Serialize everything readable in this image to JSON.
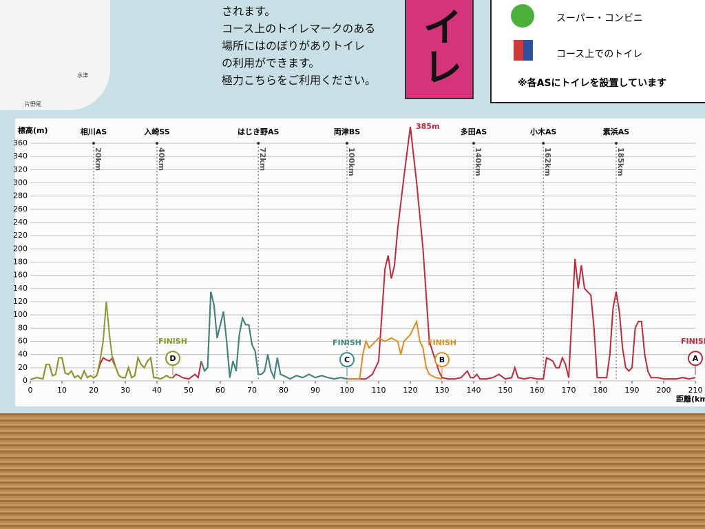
{
  "page": {
    "intro_lines": [
      "されます。",
      "コース上のトイレマークのある",
      "場所にはのぼりがありトイレ",
      "の利用ができます。",
      "極力こちらをご利用ください。"
    ],
    "banner": "イレ",
    "legend": {
      "shop": "スーパー・コンビニ",
      "toilet": "コース上でのトイレ",
      "note": "※各ASにトイレを設置しています"
    },
    "map_labels": [
      "水津",
      "片野尾"
    ]
  },
  "chart_data": {
    "type": "line",
    "y_label": "標高(m)",
    "x_label": "距離(km)",
    "xlim": [
      0,
      210
    ],
    "ylim": [
      0,
      360
    ],
    "xticks": [
      0,
      10,
      20,
      30,
      40,
      50,
      60,
      70,
      80,
      90,
      100,
      110,
      120,
      130,
      140,
      150,
      160,
      170,
      180,
      190,
      200,
      210
    ],
    "yticks": [
      0,
      20,
      40,
      60,
      80,
      100,
      120,
      140,
      160,
      180,
      200,
      220,
      240,
      260,
      280,
      300,
      320,
      340,
      360
    ],
    "grid": true,
    "stations": [
      {
        "label": "相川AS",
        "distance": {
          "value": 20,
          "label": "20km"
        }
      },
      {
        "label": "入崎SS",
        "distance": {
          "value": 40,
          "label": "40km"
        }
      },
      {
        "label": "はじき野AS",
        "distance": {
          "value": 72,
          "label": "72km"
        }
      },
      {
        "label": "両津BS",
        "distance": {
          "value": 100,
          "label": "100km"
        }
      },
      {
        "label": "多田AS",
        "distance": {
          "value": 140,
          "label": "140km"
        }
      },
      {
        "label": "小木AS",
        "distance": {
          "value": 162,
          "label": "162km"
        }
      },
      {
        "label": "素浜AS",
        "distance": {
          "value": 185,
          "label": "185km"
        }
      }
    ],
    "peak_label": {
      "value": 385,
      "label": "385m"
    },
    "finish_label": "FINISH",
    "series": [
      {
        "name": "A",
        "color": "#c0283c",
        "x": [
          0,
          2,
          4,
          5,
          6,
          7,
          8,
          9,
          10,
          11,
          12,
          13,
          14,
          15,
          16,
          17,
          18,
          19,
          20,
          21,
          22,
          23,
          24,
          25,
          26,
          27,
          28,
          29,
          30,
          31,
          32,
          33,
          34,
          35,
          36,
          37,
          38,
          39,
          40,
          41,
          42,
          43,
          44,
          45,
          46,
          47,
          48,
          50,
          52,
          53,
          54,
          55,
          56,
          57,
          58,
          59,
          60,
          61,
          62,
          63,
          64,
          65,
          66,
          67,
          68,
          69,
          70,
          71,
          72,
          73,
          74,
          75,
          76,
          77,
          78,
          79,
          80,
          82,
          84,
          86,
          88,
          90,
          92,
          94,
          96,
          98,
          100,
          102,
          104,
          106,
          108,
          110,
          111,
          112,
          113,
          114,
          115,
          116,
          118,
          120,
          122,
          124,
          126,
          128,
          129,
          130,
          132,
          134,
          136,
          138,
          139,
          140,
          141,
          142,
          144,
          146,
          148,
          150,
          152,
          153,
          154,
          156,
          158,
          160,
          162,
          163,
          165,
          166,
          167,
          168,
          169,
          170,
          172,
          173,
          174,
          175,
          177,
          178,
          179,
          180,
          182,
          183,
          184,
          185,
          186,
          187,
          188,
          189,
          190,
          191,
          192,
          193,
          194,
          195,
          196,
          198,
          200,
          204,
          206,
          208,
          210
        ],
        "values": [
          2,
          5,
          3,
          25,
          25,
          8,
          10,
          35,
          35,
          12,
          10,
          15,
          5,
          8,
          3,
          15,
          5,
          8,
          5,
          8,
          25,
          35,
          32,
          30,
          35,
          20,
          8,
          5,
          5,
          20,
          5,
          8,
          35,
          25,
          20,
          30,
          35,
          5,
          5,
          3,
          5,
          8,
          5,
          5,
          10,
          8,
          5,
          3,
          10,
          5,
          30,
          15,
          20,
          135,
          115,
          65,
          85,
          105,
          60,
          5,
          30,
          15,
          70,
          95,
          85,
          85,
          55,
          45,
          10,
          10,
          15,
          40,
          15,
          5,
          35,
          10,
          8,
          3,
          8,
          5,
          10,
          5,
          8,
          5,
          3,
          5,
          3,
          3,
          3,
          3,
          10,
          30,
          100,
          170,
          190,
          155,
          175,
          230,
          310,
          385,
          300,
          200,
          60,
          30,
          15,
          5,
          3,
          3,
          5,
          15,
          5,
          5,
          10,
          3,
          3,
          5,
          10,
          3,
          5,
          20,
          5,
          3,
          5,
          3,
          3,
          35,
          30,
          20,
          20,
          35,
          25,
          5,
          185,
          140,
          175,
          140,
          130,
          80,
          5,
          5,
          5,
          40,
          110,
          135,
          105,
          50,
          20,
          15,
          20,
          80,
          90,
          90,
          40,
          15,
          5,
          5,
          3,
          3,
          5,
          3,
          5
        ]
      },
      {
        "name": "B",
        "color": "#e08a1e",
        "x": [
          100,
          104,
          105,
          106,
          107,
          108,
          110,
          112,
          114,
          116,
          117,
          118,
          120,
          122,
          123,
          124,
          125,
          126,
          128,
          130
        ],
        "values": [
          3,
          3,
          40,
          60,
          50,
          55,
          65,
          60,
          65,
          60,
          40,
          60,
          70,
          90,
          60,
          50,
          20,
          10,
          5,
          3
        ]
      },
      {
        "name": "C",
        "color": "#3a8a80",
        "x": [
          54,
          55,
          56,
          57,
          58,
          59,
          60,
          61,
          62,
          63,
          64,
          65,
          66,
          67,
          68,
          69,
          70,
          71,
          72,
          73,
          74,
          75,
          76,
          77,
          78,
          79,
          80,
          82,
          84,
          86,
          88,
          90,
          92,
          94,
          96,
          98,
          100
        ],
        "values": [
          30,
          15,
          20,
          135,
          115,
          65,
          85,
          105,
          60,
          5,
          30,
          15,
          70,
          95,
          85,
          85,
          55,
          45,
          10,
          10,
          15,
          40,
          15,
          5,
          35,
          10,
          8,
          3,
          8,
          5,
          10,
          5,
          8,
          5,
          3,
          5,
          3
        ]
      },
      {
        "name": "D",
        "color": "#8a9a2a",
        "x": [
          0,
          2,
          4,
          5,
          6,
          7,
          8,
          9,
          10,
          11,
          12,
          13,
          14,
          15,
          16,
          17,
          18,
          19,
          20,
          21,
          22,
          23,
          24,
          25,
          26,
          27,
          28,
          29,
          30,
          31,
          32,
          33,
          34,
          35,
          36,
          37,
          38,
          39,
          40,
          41,
          42,
          43,
          44,
          45
        ],
        "values": [
          2,
          5,
          3,
          25,
          25,
          8,
          10,
          35,
          35,
          12,
          10,
          15,
          5,
          8,
          3,
          15,
          5,
          8,
          5,
          8,
          30,
          60,
          120,
          70,
          30,
          20,
          8,
          5,
          5,
          20,
          5,
          8,
          35,
          25,
          20,
          30,
          35,
          5,
          5,
          3,
          5,
          8,
          5,
          5
        ]
      }
    ]
  }
}
